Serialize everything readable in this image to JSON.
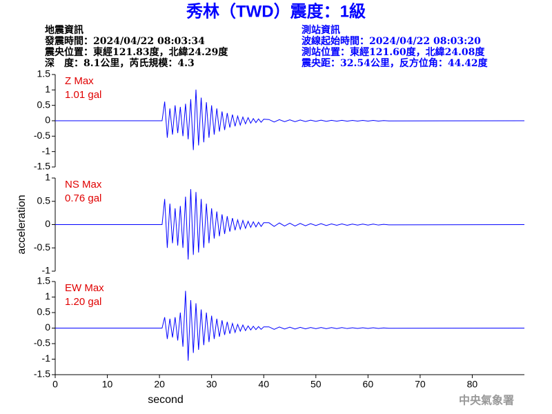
{
  "header": {
    "title": "秀林（TWD）震度：1級",
    "event_info": [
      "地震資訊",
      "發震時間：2024/04/22 08:03:34",
      "震央位置：東經121.83度，北緯24.29度",
      "深　度：8.1公里，芮氏規模：4.3"
    ],
    "station_info": [
      "測站資訊",
      "波線起始時間：2024/04/22 08:03:20",
      "測站位置：東經121.60度，北緯24.08度",
      "震央距：32.54公里，反方位角：44.42度"
    ],
    "agency": "中央氣象署"
  },
  "chart_data": [
    {
      "type": "line",
      "label": "Z Max",
      "max_label": "1.01 gal",
      "color": "#0000ff",
      "xlim": [
        0,
        90
      ],
      "ylim": [
        -1.5,
        1.5
      ],
      "yticks": [
        -1.5,
        -1,
        -0.5,
        0,
        0.5,
        1,
        1.5
      ],
      "x": [
        0,
        20.5,
        21,
        21.5,
        22,
        22.5,
        23,
        23.5,
        24,
        24.5,
        25,
        25.5,
        26,
        26.5,
        27,
        27.5,
        28,
        28.5,
        29,
        29.5,
        30,
        30.5,
        31,
        31.5,
        32,
        32.5,
        33,
        33.5,
        34,
        34.5,
        35,
        35.5,
        36,
        36.5,
        37,
        37.5,
        38,
        38.5,
        39,
        39.5,
        40,
        41,
        42,
        43,
        44,
        45,
        46,
        47,
        48,
        49,
        50,
        51,
        52,
        53,
        54,
        55,
        56,
        57,
        58,
        59,
        60,
        61,
        62,
        63,
        64,
        90
      ],
      "values": [
        0,
        0,
        0.62,
        -0.55,
        0.4,
        -0.45,
        0.5,
        -0.4,
        0.45,
        -0.5,
        0.55,
        -0.6,
        0.7,
        -0.95,
        1.01,
        -0.8,
        0.75,
        -0.7,
        0.6,
        -0.55,
        0.5,
        -0.45,
        0.4,
        -0.35,
        0.3,
        -0.3,
        0.25,
        -0.22,
        0.2,
        -0.18,
        0.15,
        -0.14,
        0.12,
        -0.1,
        0.1,
        -0.08,
        0.07,
        -0.06,
        0.06,
        -0.05,
        0.05,
        0.04,
        -0.04,
        0.035,
        -0.03,
        0.03,
        -0.03,
        0.025,
        -0.025,
        0.02,
        -0.02,
        0.02,
        -0.02,
        0.015,
        -0.015,
        0.015,
        -0.015,
        0.01,
        -0.01,
        0.01,
        -0.01,
        0.01,
        -0.01,
        0.005,
        -0.005,
        0
      ]
    },
    {
      "type": "line",
      "label": "NS Max",
      "max_label": "0.76 gal",
      "color": "#0000ff",
      "y_label": "acceleration",
      "xlim": [
        0,
        90
      ],
      "ylim": [
        -1,
        1
      ],
      "yticks": [
        -1,
        -0.5,
        0,
        0.5,
        1
      ],
      "x": [
        0,
        20.5,
        21,
        21.5,
        22,
        22.5,
        23,
        23.5,
        24,
        24.5,
        25,
        25.5,
        26,
        26.5,
        27,
        27.5,
        28,
        28.5,
        29,
        29.5,
        30,
        30.5,
        31,
        31.5,
        32,
        32.5,
        33,
        33.5,
        34,
        34.5,
        35,
        35.5,
        36,
        36.5,
        37,
        37.5,
        38,
        38.5,
        39,
        39.5,
        40,
        41,
        42,
        43,
        44,
        45,
        46,
        47,
        48,
        49,
        50,
        51,
        52,
        53,
        54,
        55,
        56,
        57,
        58,
        59,
        60,
        61,
        62,
        63,
        64,
        90
      ],
      "values": [
        0,
        0,
        0.55,
        -0.5,
        0.45,
        -0.4,
        0.35,
        -0.45,
        0.4,
        -0.5,
        0.6,
        -0.75,
        0.76,
        -0.65,
        0.7,
        -0.6,
        0.55,
        -0.5,
        0.45,
        -0.4,
        0.35,
        -0.3,
        0.28,
        -0.25,
        0.22,
        -0.2,
        0.18,
        -0.15,
        0.14,
        -0.12,
        0.1,
        -0.1,
        0.09,
        -0.08,
        0.07,
        -0.06,
        0.06,
        -0.05,
        0.05,
        -0.04,
        0.04,
        0.04,
        -0.04,
        0.035,
        -0.03,
        0.03,
        -0.03,
        0.025,
        -0.025,
        0.02,
        -0.02,
        0.02,
        -0.02,
        0.015,
        -0.015,
        0.015,
        -0.015,
        0.01,
        -0.01,
        0.01,
        -0.01,
        0.01,
        -0.01,
        0.005,
        -0.005,
        0
      ]
    },
    {
      "type": "line",
      "label": "EW Max",
      "max_label": "1.20 gal",
      "color": "#0000ff",
      "x_label": "second",
      "xlim": [
        0,
        90
      ],
      "xticks": [
        0,
        10,
        20,
        30,
        40,
        50,
        60,
        70,
        80
      ],
      "ylim": [
        -1.5,
        1.5
      ],
      "yticks": [
        -1.5,
        -1,
        -0.5,
        0,
        0.5,
        1,
        1.5
      ],
      "x": [
        0,
        20.5,
        21,
        21.5,
        22,
        22.5,
        23,
        23.5,
        24,
        24.5,
        25,
        25.5,
        26,
        26.5,
        27,
        27.5,
        28,
        28.5,
        29,
        29.5,
        30,
        30.5,
        31,
        31.5,
        32,
        32.5,
        33,
        33.5,
        34,
        34.5,
        35,
        35.5,
        36,
        36.5,
        37,
        37.5,
        38,
        38.5,
        39,
        39.5,
        40,
        41,
        42,
        43,
        44,
        45,
        46,
        47,
        48,
        49,
        50,
        51,
        52,
        53,
        54,
        55,
        56,
        57,
        58,
        59,
        60,
        61,
        62,
        63,
        64,
        90
      ],
      "values": [
        0,
        0,
        0.35,
        -0.35,
        0.3,
        -0.3,
        0.35,
        -0.4,
        0.5,
        -0.6,
        1.2,
        -1.05,
        0.9,
        -0.8,
        0.8,
        -0.7,
        0.6,
        -0.55,
        0.5,
        -0.45,
        0.4,
        -0.35,
        0.3,
        -0.28,
        0.25,
        -0.22,
        0.2,
        -0.18,
        0.15,
        -0.14,
        0.12,
        -0.1,
        0.1,
        -0.08,
        0.07,
        -0.06,
        0.06,
        -0.05,
        0.05,
        -0.04,
        0.04,
        0.04,
        -0.04,
        0.035,
        -0.03,
        0.03,
        -0.03,
        0.025,
        -0.025,
        0.02,
        -0.02,
        0.02,
        -0.02,
        0.015,
        -0.015,
        0.015,
        -0.015,
        0.01,
        -0.01,
        0.01,
        -0.01,
        0.01,
        -0.01,
        0.005,
        -0.005,
        0
      ]
    }
  ]
}
